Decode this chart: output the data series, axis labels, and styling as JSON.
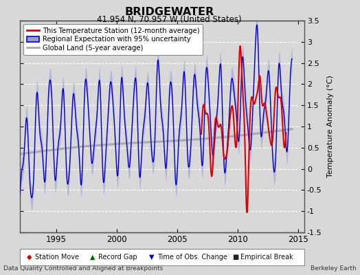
{
  "title": "BRIDGEWATER",
  "subtitle": "41.954 N, 70.957 W (United States)",
  "ylabel": "Temperature Anomaly (°C)",
  "xlabel_left": "Data Quality Controlled and Aligned at Breakpoints",
  "xlabel_right": "Berkeley Earth",
  "ylim": [
    -1.5,
    3.5
  ],
  "xlim": [
    1992.0,
    2015.5
  ],
  "yticks": [
    -1.5,
    -1.0,
    -0.5,
    0.0,
    0.5,
    1.0,
    1.5,
    2.0,
    2.5,
    3.0,
    3.5
  ],
  "xticks": [
    1995,
    2000,
    2005,
    2010,
    2015
  ],
  "bg_color": "#d8d8d8",
  "plot_bg_color": "#d8d8d8",
  "grid_color": "#ffffff",
  "blue_line_color": "#0000cc",
  "blue_fill_color": "#9999dd",
  "red_line_color": "#dd0000",
  "gray_line_color": "#aaaaaa",
  "legend_marker_colors": {
    "station_move": "#cc0000",
    "record_gap": "#006600",
    "obs_change": "#0000cc",
    "empirical_break": "#222222"
  }
}
